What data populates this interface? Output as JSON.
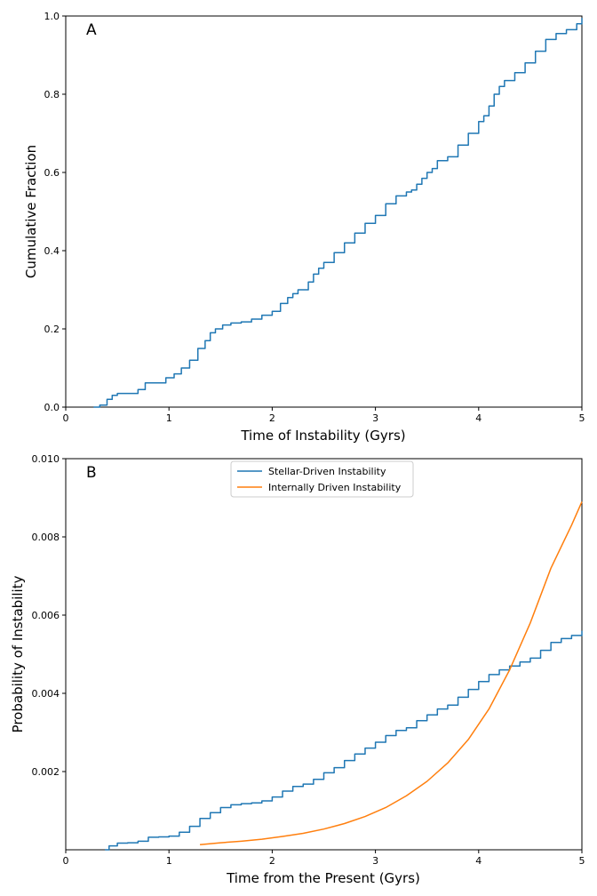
{
  "chart_data": [
    {
      "panel": "A",
      "type": "line",
      "xlabel": "Time of Instability (Gyrs)",
      "ylabel": "Cumulative Fraction",
      "xlim": [
        0,
        5
      ],
      "ylim": [
        0,
        1
      ],
      "xticks": [
        "0",
        "1",
        "2",
        "3",
        "4",
        "5"
      ],
      "yticks": [
        "0.0",
        "0.2",
        "0.4",
        "0.6",
        "0.8",
        "1.0"
      ],
      "grid": false,
      "series": [
        {
          "name": "Cumulative Fraction",
          "color": "#1f77b4",
          "step": true,
          "x": [
            0.27,
            0.33,
            0.4,
            0.45,
            0.5,
            0.7,
            0.77,
            0.85,
            0.97,
            1.05,
            1.12,
            1.2,
            1.28,
            1.35,
            1.4,
            1.45,
            1.52,
            1.6,
            1.7,
            1.8,
            1.9,
            2.0,
            2.08,
            2.15,
            2.2,
            2.25,
            2.3,
            2.35,
            2.4,
            2.45,
            2.5,
            2.6,
            2.7,
            2.8,
            2.9,
            3.0,
            3.1,
            3.2,
            3.3,
            3.35,
            3.4,
            3.45,
            3.5,
            3.55,
            3.6,
            3.7,
            3.8,
            3.9,
            4.0,
            4.05,
            4.1,
            4.15,
            4.2,
            4.25,
            4.35,
            4.45,
            4.55,
            4.65,
            4.75,
            4.85,
            4.95,
            5.0
          ],
          "y": [
            0.0,
            0.005,
            0.02,
            0.03,
            0.035,
            0.045,
            0.062,
            0.062,
            0.075,
            0.085,
            0.1,
            0.12,
            0.15,
            0.17,
            0.19,
            0.2,
            0.21,
            0.215,
            0.218,
            0.225,
            0.235,
            0.245,
            0.265,
            0.28,
            0.29,
            0.3,
            0.3,
            0.32,
            0.34,
            0.355,
            0.37,
            0.395,
            0.42,
            0.445,
            0.47,
            0.49,
            0.52,
            0.54,
            0.55,
            0.555,
            0.57,
            0.585,
            0.6,
            0.61,
            0.63,
            0.64,
            0.67,
            0.7,
            0.73,
            0.745,
            0.77,
            0.8,
            0.82,
            0.835,
            0.855,
            0.88,
            0.91,
            0.94,
            0.955,
            0.965,
            0.98,
            0.995
          ]
        }
      ]
    },
    {
      "panel": "B",
      "type": "line",
      "xlabel": "Time from the Present (Gyrs)",
      "ylabel": "Probability of Instability",
      "xlim": [
        0,
        5
      ],
      "ylim": [
        0,
        0.01
      ],
      "xticks": [
        "0",
        "1",
        "2",
        "3",
        "4",
        "5"
      ],
      "yticks": [
        "0.002",
        "0.004",
        "0.006",
        "0.008",
        "0.010"
      ],
      "grid": false,
      "legend_position": "top-center",
      "series": [
        {
          "name": "Stellar-Driven Instability",
          "color": "#1f77b4",
          "step": true,
          "x": [
            0.38,
            0.42,
            0.5,
            0.6,
            0.7,
            0.8,
            0.9,
            1.0,
            1.1,
            1.2,
            1.3,
            1.4,
            1.5,
            1.6,
            1.7,
            1.8,
            1.9,
            2.0,
            2.1,
            2.2,
            2.3,
            2.4,
            2.5,
            2.6,
            2.7,
            2.8,
            2.9,
            3.0,
            3.1,
            3.2,
            3.3,
            3.4,
            3.5,
            3.6,
            3.7,
            3.8,
            3.9,
            4.0,
            4.1,
            4.2,
            4.3,
            4.4,
            4.5,
            4.6,
            4.7,
            4.8,
            4.9,
            5.0
          ],
          "y": [
            0.0,
            0.0001,
            0.00017,
            0.00018,
            0.00022,
            0.00032,
            0.00033,
            0.00035,
            0.00045,
            0.0006,
            0.0008,
            0.00095,
            0.00108,
            0.00115,
            0.00118,
            0.0012,
            0.00125,
            0.00135,
            0.0015,
            0.00162,
            0.00168,
            0.0018,
            0.00197,
            0.0021,
            0.00228,
            0.00245,
            0.0026,
            0.00275,
            0.00292,
            0.00305,
            0.00312,
            0.0033,
            0.00345,
            0.0036,
            0.0037,
            0.0039,
            0.0041,
            0.0043,
            0.00448,
            0.0046,
            0.0047,
            0.0048,
            0.0049,
            0.0051,
            0.0053,
            0.0054,
            0.00548,
            0.0056
          ]
        },
        {
          "name": "Internally Driven Instability",
          "color": "#ff7f0e",
          "step": false,
          "x": [
            1.3,
            1.5,
            1.7,
            1.9,
            2.1,
            2.3,
            2.5,
            2.7,
            2.9,
            3.1,
            3.3,
            3.5,
            3.7,
            3.9,
            4.1,
            4.3,
            4.5,
            4.7,
            4.9,
            5.0
          ],
          "y": [
            0.00013,
            0.00018,
            0.00022,
            0.00027,
            0.00034,
            0.00042,
            0.00053,
            0.00067,
            0.00085,
            0.00108,
            0.00138,
            0.00175,
            0.00222,
            0.00282,
            0.0036,
            0.0046,
            0.0058,
            0.0072,
            0.0083,
            0.0089
          ]
        }
      ]
    }
  ]
}
